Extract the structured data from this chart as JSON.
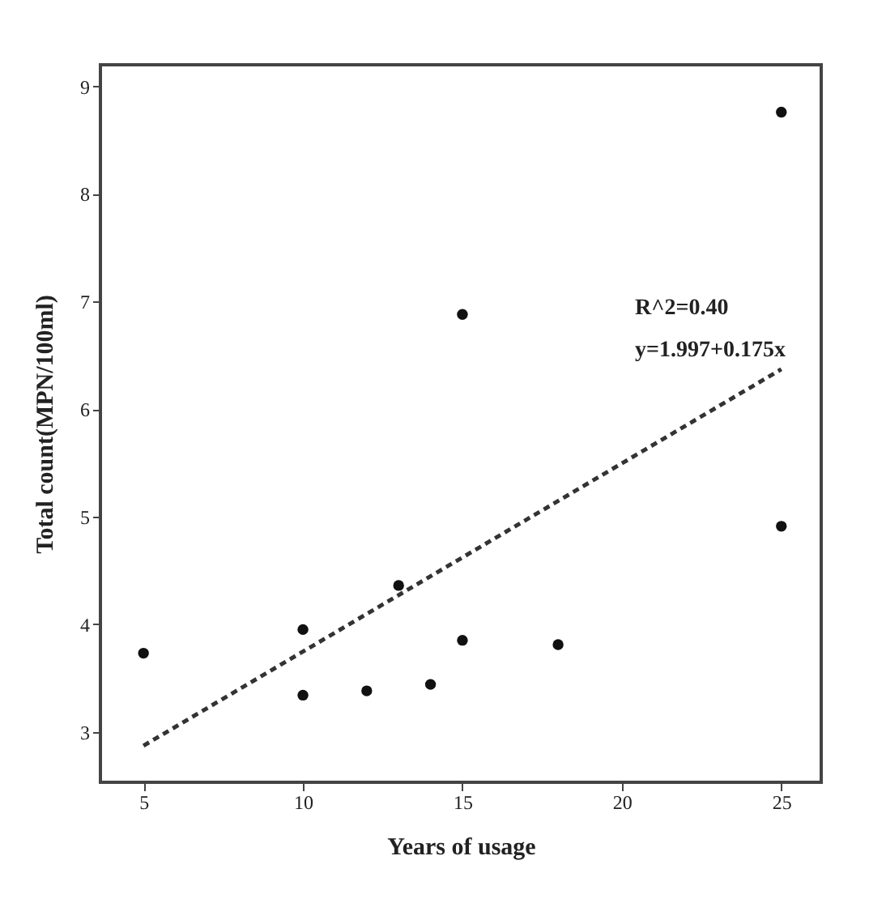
{
  "chart_data": {
    "type": "scatter",
    "xlabel": "Years of usage",
    "ylabel": "Total count(MPN/100ml)",
    "xlim": [
      3.65,
      26.25
    ],
    "ylim": [
      2.53,
      9.2
    ],
    "xticks": [
      5,
      10,
      15,
      20,
      25
    ],
    "yticks": [
      3,
      4,
      5,
      6,
      7,
      8,
      9
    ],
    "grid": false,
    "marker": "circle",
    "series": [
      {
        "color": "#111111",
        "x": [
          5,
          10,
          10,
          12,
          13,
          14,
          15,
          15,
          18,
          25,
          25
        ],
        "values": [
          3.73,
          3.95,
          3.34,
          3.38,
          4.36,
          3.44,
          3.85,
          6.88,
          3.81,
          8.76,
          4.91
        ]
      },
      {
        "type": "line",
        "line_style": "dashed",
        "marker": "none",
        "color": "#333333",
        "x": [
          5,
          25
        ],
        "values": [
          2.87,
          6.37
        ]
      }
    ],
    "annotations": [
      "R^2=0.40",
      "y=1.997+0.175x"
    ]
  }
}
